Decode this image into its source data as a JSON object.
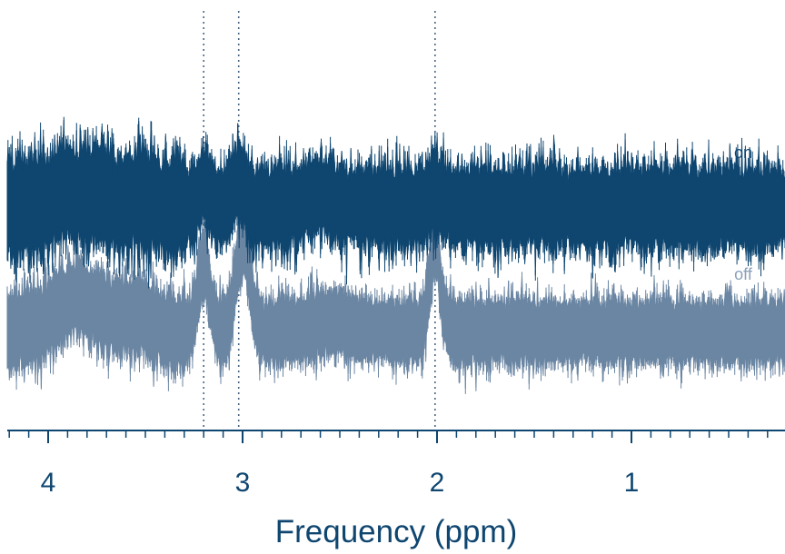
{
  "chart_data": {
    "type": "line",
    "xlabel": "Frequency (ppm)",
    "xlim": [
      4.2,
      0.2
    ],
    "x_reversed": true,
    "major_ticks": [
      4,
      3,
      2,
      1
    ],
    "major_tick_labels": [
      "4",
      "3",
      "2",
      "1"
    ],
    "minor_tick_step": 0.1,
    "reference_lines": [
      3.2,
      3.02,
      2.01
    ],
    "grid": false,
    "noise_level": "high",
    "series": [
      {
        "name": "on",
        "color": "#0f4670",
        "baseline": 0.0,
        "peaks": [
          {
            "center": 3.9,
            "height": 0.35,
            "width": 0.05
          },
          {
            "center": 3.75,
            "height": 0.25,
            "width": 0.06
          },
          {
            "center": 3.52,
            "height": 0.18,
            "width": 0.05
          },
          {
            "center": 3.2,
            "height": 0.45,
            "width": 0.025
          },
          {
            "center": 3.02,
            "height": 0.55,
            "width": 0.03
          },
          {
            "center": 2.6,
            "height": 0.22,
            "width": 0.08
          },
          {
            "center": 2.01,
            "height": 0.3,
            "width": 0.03
          }
        ]
      },
      {
        "name": "off",
        "color": "#6b86a3",
        "baseline": -1.0,
        "peaks": [
          {
            "center": 3.85,
            "height": 0.4,
            "width": 0.12
          },
          {
            "center": 3.55,
            "height": 0.2,
            "width": 0.08
          },
          {
            "center": 3.2,
            "height": 0.85,
            "width": 0.03
          },
          {
            "center": 3.0,
            "height": 1.1,
            "width": 0.035
          },
          {
            "center": 2.55,
            "height": 0.12,
            "width": 0.1
          },
          {
            "center": 2.01,
            "height": 1.05,
            "width": 0.028
          }
        ]
      }
    ]
  }
}
